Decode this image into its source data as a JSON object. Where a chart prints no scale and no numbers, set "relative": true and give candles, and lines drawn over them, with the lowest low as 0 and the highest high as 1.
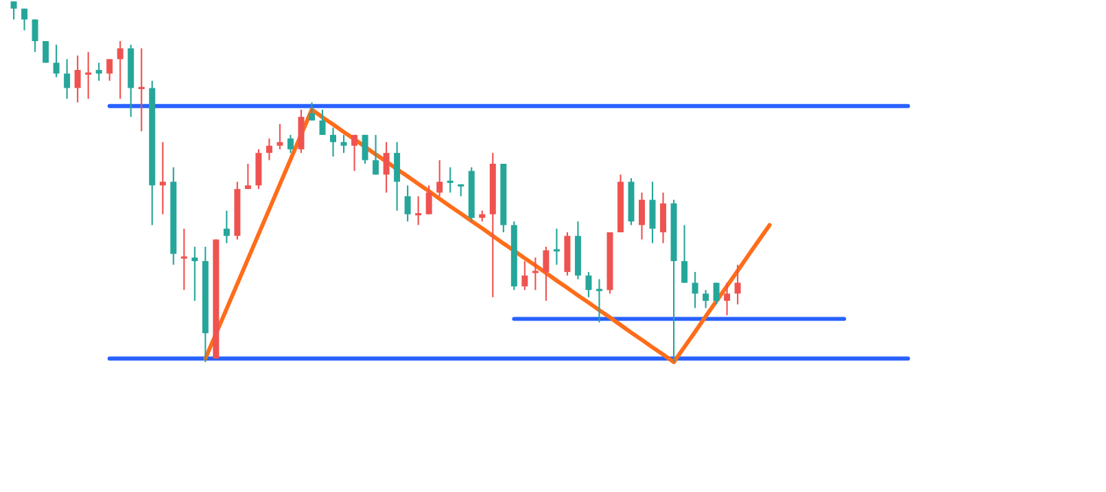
{
  "chart_data": {
    "type": "candlestick",
    "relative": true,
    "categories": [
      null,
      null,
      null,
      null,
      null,
      null,
      null,
      null,
      null,
      null,
      null,
      null,
      null,
      null,
      null,
      null,
      null,
      null,
      null,
      null,
      null,
      null,
      null,
      null,
      null,
      null,
      null,
      null,
      null,
      null,
      null,
      null,
      null,
      null,
      null,
      null,
      null,
      null,
      null,
      null,
      null,
      null,
      null,
      null,
      null,
      null,
      null,
      null,
      null,
      null,
      null,
      null,
      null,
      null,
      null,
      null,
      null,
      null,
      null,
      null,
      null,
      null,
      null,
      null,
      null,
      null,
      null,
      null,
      null,
      null,
      null,
      null,
      null,
      null,
      null,
      null,
      null,
      null,
      null,
      null,
      null,
      null,
      null,
      null,
      null
    ],
    "ohlc": [
      [
        1.0,
        1.0,
        0.95,
        0.98
      ],
      [
        0.98,
        0.98,
        0.92,
        0.95
      ],
      [
        0.95,
        0.95,
        0.86,
        0.89
      ],
      [
        0.89,
        0.89,
        0.83,
        0.83
      ],
      [
        0.83,
        0.88,
        0.79,
        0.8
      ],
      [
        0.8,
        0.84,
        0.73,
        0.76
      ],
      [
        0.76,
        0.85,
        0.72,
        0.81
      ],
      [
        0.8,
        0.86,
        0.73,
        0.8
      ],
      [
        0.81,
        0.83,
        0.78,
        0.8
      ],
      [
        0.8,
        0.84,
        0.78,
        0.84
      ],
      [
        0.84,
        0.89,
        0.73,
        0.87
      ],
      [
        0.87,
        0.88,
        0.68,
        0.76
      ],
      [
        0.76,
        0.87,
        0.64,
        0.76
      ],
      [
        0.76,
        0.78,
        0.38,
        0.49
      ],
      [
        0.49,
        0.61,
        0.41,
        0.5
      ],
      [
        0.5,
        0.54,
        0.27,
        0.3
      ],
      [
        0.29,
        0.37,
        0.2,
        0.29
      ],
      [
        0.29,
        0.32,
        0.17,
        0.28
      ],
      [
        0.28,
        0.32,
        0.0,
        0.08
      ],
      [
        0.01,
        0.34,
        0.01,
        0.34
      ],
      [
        0.37,
        0.42,
        0.33,
        0.35
      ],
      [
        0.35,
        0.5,
        0.34,
        0.48
      ],
      [
        0.48,
        0.55,
        0.48,
        0.49
      ],
      [
        0.49,
        0.59,
        0.48,
        0.58
      ],
      [
        0.58,
        0.62,
        0.56,
        0.6
      ],
      [
        0.6,
        0.66,
        0.59,
        0.61
      ],
      [
        0.62,
        0.63,
        0.58,
        0.59
      ],
      [
        0.59,
        0.7,
        0.58,
        0.68
      ],
      [
        0.69,
        0.72,
        0.67,
        0.67
      ],
      [
        0.67,
        0.7,
        0.63,
        0.63
      ],
      [
        0.63,
        0.65,
        0.57,
        0.61
      ],
      [
        0.61,
        0.63,
        0.58,
        0.6
      ],
      [
        0.6,
        0.63,
        0.53,
        0.63
      ],
      [
        0.63,
        0.63,
        0.55,
        0.56
      ],
      [
        0.56,
        0.63,
        0.52,
        0.52
      ],
      [
        0.52,
        0.61,
        0.47,
        0.58
      ],
      [
        0.58,
        0.61,
        0.42,
        0.5
      ],
      [
        0.46,
        0.49,
        0.39,
        0.41
      ],
      [
        0.41,
        0.46,
        0.38,
        0.41
      ],
      [
        0.41,
        0.49,
        0.41,
        0.47
      ],
      [
        0.47,
        0.56,
        0.46,
        0.5
      ],
      [
        0.5,
        0.54,
        0.47,
        0.5
      ],
      [
        0.49,
        0.49,
        0.46,
        0.49
      ],
      [
        0.53,
        0.54,
        0.39,
        0.4
      ],
      [
        0.4,
        0.42,
        0.39,
        0.41
      ],
      [
        0.41,
        0.58,
        0.18,
        0.55
      ],
      [
        0.55,
        0.55,
        0.36,
        0.38
      ],
      [
        0.38,
        0.39,
        0.2,
        0.21
      ],
      [
        0.21,
        0.28,
        0.2,
        0.24
      ],
      [
        0.25,
        0.29,
        0.2,
        0.25
      ],
      [
        0.25,
        0.32,
        0.17,
        0.31
      ],
      [
        0.31,
        0.37,
        0.27,
        0.31
      ],
      [
        0.25,
        0.36,
        0.24,
        0.35
      ],
      [
        0.35,
        0.39,
        0.23,
        0.24
      ],
      [
        0.24,
        0.25,
        0.18,
        0.2
      ],
      [
        0.2,
        0.23,
        0.11,
        0.2
      ],
      [
        0.2,
        0.36,
        0.19,
        0.36
      ],
      [
        0.36,
        0.52,
        0.36,
        0.5
      ],
      [
        0.5,
        0.51,
        0.38,
        0.39
      ],
      [
        0.38,
        0.47,
        0.34,
        0.45
      ],
      [
        0.45,
        0.5,
        0.33,
        0.37
      ],
      [
        0.36,
        0.47,
        0.33,
        0.44
      ],
      [
        0.44,
        0.45,
        0.0,
        0.28
      ],
      [
        0.28,
        0.38,
        0.22,
        0.22
      ],
      [
        0.22,
        0.25,
        0.15,
        0.19
      ],
      [
        0.19,
        0.2,
        0.15,
        0.17
      ],
      [
        0.22,
        0.22,
        0.16,
        0.17
      ],
      [
        0.17,
        0.22,
        0.13,
        0.19
      ],
      [
        0.19,
        0.27,
        0.16,
        0.22
      ],
      null,
      null,
      null,
      null,
      null,
      null,
      null,
      null,
      null,
      null,
      null,
      null,
      null,
      null,
      null,
      null
    ],
    "colors": [
      "#26a69a",
      "#26a69a",
      "#26a69a",
      "#26a69a",
      "#26a69a",
      "#26a69a",
      "#ef5350",
      "#ef5350",
      "#26a69a",
      "#ef5350",
      "#ef5350",
      "#26a69a",
      "#ef5350",
      "#26a69a",
      "#ef5350",
      "#26a69a",
      "#ef5350",
      "#26a69a",
      "#26a69a",
      "#ef5350",
      "#26a69a",
      "#ef5350",
      "#ef5350",
      "#ef5350",
      "#ef5350",
      "#ef5350",
      "#26a69a",
      "#ef5350",
      "#26a69a",
      "#26a69a",
      "#26a69a",
      "#26a69a",
      "#ef5350",
      "#26a69a",
      "#26a69a",
      "#ef5350",
      "#26a69a",
      "#26a69a",
      "#ef5350",
      "#ef5350",
      "#ef5350",
      "#26a69a",
      "#26a69a",
      "#26a69a",
      "#ef5350",
      "#ef5350",
      "#26a69a",
      "#26a69a",
      "#ef5350",
      "#ef5350",
      "#ef5350",
      "#26a69a",
      "#ef5350",
      "#26a69a",
      "#26a69a",
      "#26a69a",
      "#ef5350",
      "#ef5350",
      "#26a69a",
      "#ef5350",
      "#26a69a",
      "#ef5350",
      "#26a69a",
      "#26a69a",
      "#26a69a",
      "#26a69a",
      "#26a69a",
      "#ef5350",
      "#ef5350",
      null,
      null,
      null,
      null,
      null,
      null,
      null,
      null,
      null,
      null,
      null,
      null,
      null,
      null,
      null,
      null
    ],
    "series": [
      {
        "type": "line",
        "color": "#2962ff",
        "values": [
          null,
          null,
          null,
          null,
          null,
          null,
          null,
          null,
          null,
          0.71,
          0.71,
          0.71,
          0.71,
          0.71,
          0.71,
          0.71,
          0.71,
          0.71,
          0.71,
          0.71,
          0.71,
          0.71,
          0.71,
          0.71,
          0.71,
          0.71,
          0.71,
          0.71,
          0.71,
          0.71,
          0.71,
          0.71,
          0.71,
          0.71,
          0.71,
          0.71,
          0.71,
          0.71,
          0.71,
          0.71,
          0.71,
          0.71,
          0.71,
          0.71,
          0.71,
          0.71,
          0.71,
          0.71,
          0.71,
          0.71,
          0.71,
          0.71,
          0.71,
          0.71,
          0.71,
          0.71,
          0.71,
          0.71,
          0.71,
          0.71,
          0.71,
          0.71,
          0.71,
          0.71,
          0.71,
          0.71,
          0.71,
          0.71,
          0.71,
          0.71,
          0.71,
          0.71,
          0.71,
          0.71,
          0.71,
          0.71,
          0.71,
          0.71,
          0.71,
          0.71,
          0.71,
          0.71,
          0.71,
          0.71,
          0.71
        ]
      },
      {
        "type": "line",
        "color": "#2962ff",
        "values": [
          null,
          null,
          null,
          null,
          null,
          null,
          null,
          null,
          null,
          0.01,
          0.01,
          0.01,
          0.01,
          0.01,
          0.01,
          0.01,
          0.01,
          0.01,
          0.01,
          0.01,
          0.01,
          0.01,
          0.01,
          0.01,
          0.01,
          0.01,
          0.01,
          0.01,
          0.01,
          0.01,
          0.01,
          0.01,
          0.01,
          0.01,
          0.01,
          0.01,
          0.01,
          0.01,
          0.01,
          0.01,
          0.01,
          0.01,
          0.01,
          0.01,
          0.01,
          0.01,
          0.01,
          0.01,
          0.01,
          0.01,
          0.01,
          0.01,
          0.01,
          0.01,
          0.01,
          0.01,
          0.01,
          0.01,
          0.01,
          0.01,
          0.01,
          0.01,
          0.01,
          0.01,
          0.01,
          0.01,
          0.01,
          0.01,
          0.01,
          0.01,
          0.01,
          0.01,
          0.01,
          0.01,
          0.01,
          0.01,
          0.01,
          0.01,
          0.01,
          0.01,
          0.01,
          0.01,
          0.01,
          0.01,
          0.01
        ]
      },
      {
        "type": "line",
        "color": "#2962ff",
        "values": [
          null,
          null,
          null,
          null,
          null,
          null,
          null,
          null,
          null,
          null,
          null,
          null,
          null,
          null,
          null,
          null,
          null,
          null,
          null,
          null,
          null,
          null,
          null,
          null,
          null,
          null,
          null,
          null,
          null,
          null,
          null,
          null,
          null,
          null,
          null,
          null,
          null,
          null,
          null,
          null,
          null,
          null,
          null,
          null,
          null,
          null,
          null,
          0.12,
          0.12,
          0.12,
          0.12,
          0.12,
          0.12,
          0.12,
          0.12,
          0.12,
          0.12,
          0.12,
          0.12,
          0.12,
          0.12,
          0.12,
          0.12,
          0.12,
          0.12,
          0.12,
          0.12,
          0.12,
          0.12,
          0.12,
          0.12,
          0.12,
          0.12,
          0.12,
          0.12,
          0.12,
          0.12,
          0.12,
          0.12,
          null,
          null,
          null,
          null,
          null,
          null
        ]
      },
      {
        "type": "line",
        "color": "#ff6d1a",
        "values": [
          null,
          null,
          null,
          null,
          null,
          null,
          null,
          null,
          null,
          null,
          null,
          null,
          null,
          null,
          null,
          null,
          null,
          null,
          0.01,
          0.079,
          0.148,
          0.217,
          0.286,
          0.355,
          0.424,
          0.493,
          0.562,
          0.631,
          0.7,
          0.679,
          0.659,
          0.638,
          0.618,
          0.597,
          0.576,
          0.556,
          0.535,
          0.515,
          0.494,
          0.474,
          0.453,
          0.432,
          0.412,
          0.391,
          0.371,
          0.35,
          0.329,
          0.309,
          0.288,
          0.268,
          0.247,
          0.226,
          0.206,
          0.185,
          0.165,
          0.144,
          0.124,
          0.103,
          0.082,
          0.062,
          0.041,
          0.021,
          0.0,
          0.042,
          0.084,
          0.127,
          0.169,
          0.211,
          0.253,
          0.296,
          0.338,
          0.38,
          null,
          null,
          null,
          null,
          null,
          null,
          null,
          null,
          null,
          null,
          null,
          null,
          null
        ]
      }
    ]
  }
}
